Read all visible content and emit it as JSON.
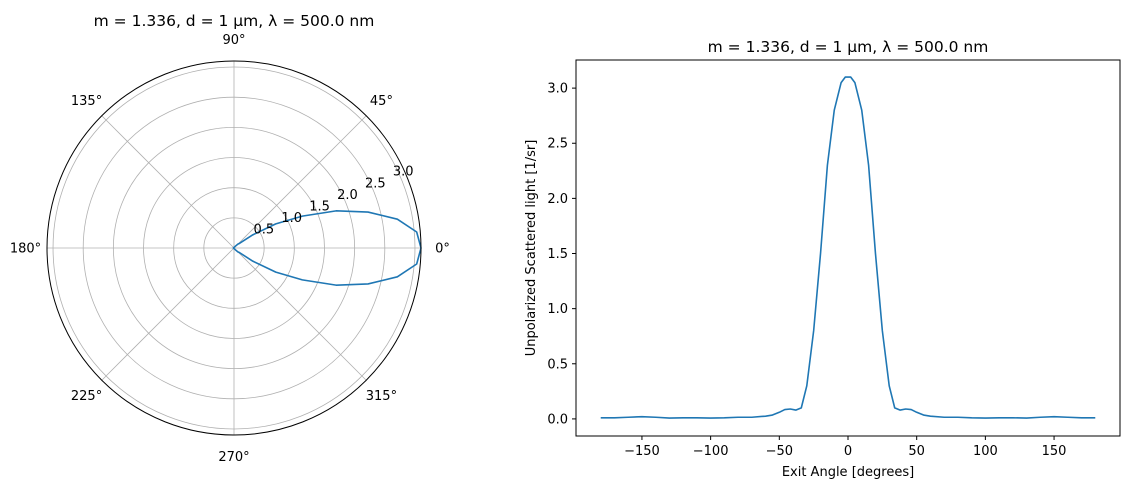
{
  "chart_data": [
    {
      "type": "polar",
      "title": "m = 1.336, d = 1 μm, λ = 500.0 nm",
      "theta_ticks": [
        "0°",
        "45°",
        "90°",
        "135°",
        "180°",
        "225°",
        "270°",
        "315°"
      ],
      "theta_tick_values": [
        0,
        45,
        90,
        135,
        180,
        225,
        270,
        315
      ],
      "r_ticks": [
        "0.5",
        "1.0",
        "1.5",
        "2.0",
        "2.5",
        "3.0"
      ],
      "r_tick_values": [
        0.5,
        1.0,
        1.5,
        2.0,
        2.5,
        3.0
      ],
      "rlim": [
        0,
        3.1
      ],
      "grid": true,
      "series": [
        {
          "color": "#1f77b4",
          "points": [
            [
              0,
              3.1
            ],
            [
              5,
              3.04
            ],
            [
              10,
              2.75
            ],
            [
              15,
              2.3
            ],
            [
              20,
              1.8
            ],
            [
              25,
              1.25
            ],
            [
              30,
              0.8
            ],
            [
              35,
              0.38
            ],
            [
              40,
              0.12
            ],
            [
              45,
              0.09
            ],
            [
              50,
              0.05
            ],
            [
              60,
              0.02
            ],
            [
              90,
              0.01
            ],
            [
              150,
              0.01
            ],
            [
              180,
              0.01
            ],
            [
              210,
              0.01
            ],
            [
              270,
              0.01
            ],
            [
              300,
              0.02
            ],
            [
              310,
              0.05
            ],
            [
              315,
              0.09
            ],
            [
              320,
              0.12
            ],
            [
              325,
              0.38
            ],
            [
              330,
              0.8
            ],
            [
              335,
              1.25
            ],
            [
              340,
              1.8
            ],
            [
              345,
              2.3
            ],
            [
              350,
              2.75
            ],
            [
              355,
              3.04
            ],
            [
              360,
              3.1
            ]
          ]
        }
      ]
    },
    {
      "type": "line",
      "title": "m = 1.336, d = 1 μm, λ = 500.0 nm",
      "xlabel": "Exit Angle [degrees]",
      "ylabel": "Unpolarized Scattered light [1/sr]",
      "xlim": [
        -198,
        198
      ],
      "ylim": [
        -0.155,
        3.255
      ],
      "x_ticks": [
        -150,
        -100,
        -50,
        0,
        50,
        100,
        150
      ],
      "x_tick_labels": [
        "−150",
        "−100",
        "−50",
        "0",
        "50",
        "100",
        "150"
      ],
      "y_ticks": [
        0.0,
        0.5,
        1.0,
        1.5,
        2.0,
        2.5,
        3.0
      ],
      "y_tick_labels": [
        "0.0",
        "0.5",
        "1.0",
        "1.5",
        "2.0",
        "2.5",
        "3.0"
      ],
      "grid": false,
      "series": [
        {
          "color": "#1f77b4",
          "x": [
            -180,
            -170,
            -160,
            -150,
            -140,
            -130,
            -120,
            -110,
            -100,
            -90,
            -80,
            -70,
            -60,
            -55,
            -50,
            -46,
            -42,
            -38,
            -34,
            -30,
            -25,
            -20,
            -15,
            -10,
            -5,
            -2,
            0,
            2,
            5,
            10,
            15,
            20,
            25,
            30,
            34,
            38,
            42,
            46,
            50,
            55,
            60,
            70,
            80,
            90,
            100,
            110,
            120,
            130,
            140,
            150,
            160,
            170,
            180
          ],
          "y": [
            0.01,
            0.01,
            0.015,
            0.02,
            0.015,
            0.008,
            0.01,
            0.01,
            0.008,
            0.01,
            0.015,
            0.015,
            0.025,
            0.035,
            0.06,
            0.085,
            0.09,
            0.08,
            0.1,
            0.3,
            0.8,
            1.5,
            2.3,
            2.8,
            3.05,
            3.1,
            3.1,
            3.1,
            3.05,
            2.8,
            2.3,
            1.5,
            0.8,
            0.3,
            0.1,
            0.08,
            0.09,
            0.085,
            0.06,
            0.035,
            0.025,
            0.015,
            0.015,
            0.01,
            0.008,
            0.01,
            0.01,
            0.008,
            0.015,
            0.02,
            0.015,
            0.01,
            0.01
          ]
        }
      ]
    }
  ]
}
